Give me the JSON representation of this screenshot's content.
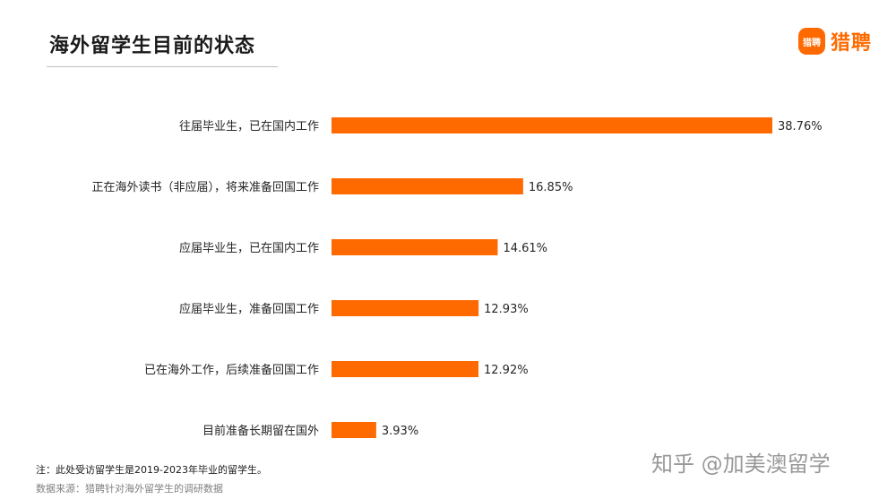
{
  "title": "海外留学生目前的状态",
  "logo": {
    "mark_text": "猎聘",
    "text": "猎聘"
  },
  "chart_data": {
    "type": "bar",
    "orientation": "horizontal",
    "categories": [
      "往届毕业生，已在国内工作",
      "正在海外读书（非应届），将来准备回国工作",
      "应届毕业生，已在国内工作",
      "应届毕业生，准备回国工作",
      "已在海外工作，后续准备回国工作",
      "目前准备长期留在国外"
    ],
    "values": [
      38.76,
      16.85,
      14.61,
      12.93,
      12.92,
      3.93
    ],
    "value_labels": [
      "38.76%",
      "16.85%",
      "14.61%",
      "12.93%",
      "12.92%",
      "3.93%"
    ],
    "bar_color": "#ff6a00",
    "unit": "%",
    "grid": false,
    "legend": "none"
  },
  "note": "注：此处受访留学生是2019-2023年毕业的留学生。",
  "source": "数据来源：猎聘针对海外留学生的调研数据",
  "watermark": "知乎 @加美澳留学"
}
